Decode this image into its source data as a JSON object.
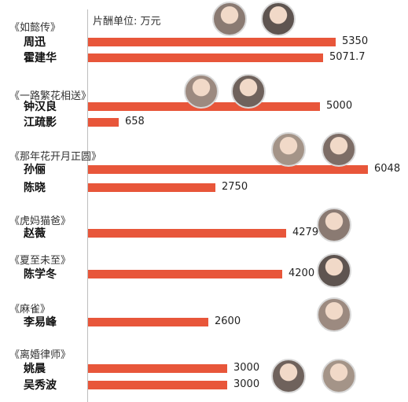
{
  "unit_label": "片酬单位: 万元",
  "colors": {
    "bar": "#e8563a",
    "axis": "#bdbdbd"
  },
  "chart_data": {
    "type": "bar",
    "orientation": "horizontal",
    "unit": "万元",
    "groups": [
      {
        "show": "《如懿传》",
        "actors": [
          {
            "name": "周迅",
            "value": 5350,
            "label": "5350"
          },
          {
            "name": "霍建华",
            "value": 5071.7,
            "label": "5071.7"
          }
        ]
      },
      {
        "show": "《一路繁花相送》",
        "actors": [
          {
            "name": "钟汉良",
            "value": 5000,
            "label": "5000"
          },
          {
            "name": "江疏影",
            "value": 658,
            "label": "658"
          }
        ]
      },
      {
        "show": "《那年花开月正圆》",
        "actors": [
          {
            "name": "孙俪",
            "value": 6048,
            "label": "6048"
          },
          {
            "name": "陈晓",
            "value": 2750,
            "label": "2750"
          }
        ]
      },
      {
        "show": "《虎妈猫爸》",
        "actors": [
          {
            "name": "赵薇",
            "value": 4279,
            "label": "4279"
          }
        ]
      },
      {
        "show": "《夏至未至》",
        "actors": [
          {
            "name": "陈学冬",
            "value": 4200,
            "label": "4200"
          }
        ]
      },
      {
        "show": "《麻雀》",
        "actors": [
          {
            "name": "李易峰",
            "value": 2600,
            "label": "2600"
          }
        ]
      },
      {
        "show": "《离婚律师》",
        "actors": [
          {
            "name": "姚晨",
            "value": 3000,
            "label": "3000"
          },
          {
            "name": "吴秀波",
            "value": 3000,
            "label": "3000"
          }
        ]
      }
    ]
  }
}
